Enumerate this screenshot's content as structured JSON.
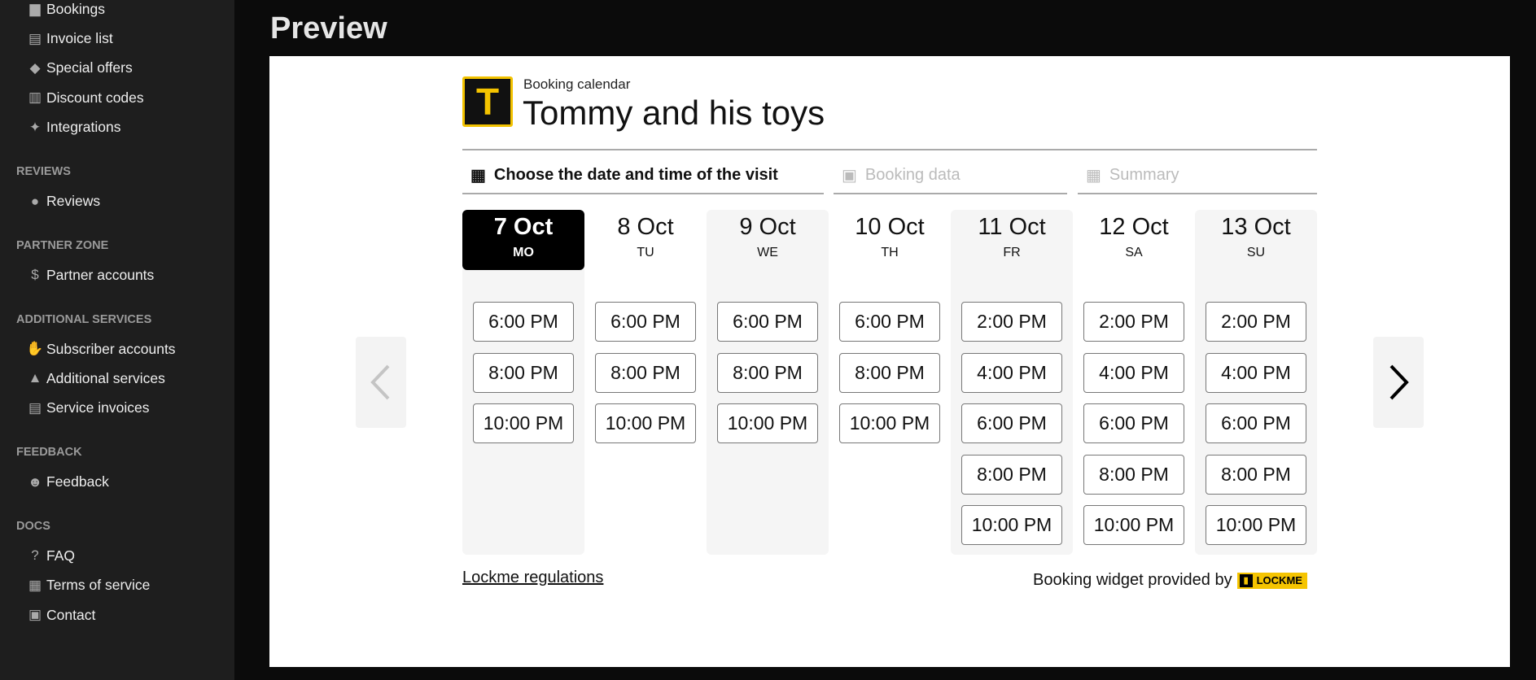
{
  "sidebar": {
    "sections": [
      {
        "header": "",
        "items": [
          {
            "label": "Bookings",
            "icon": "book-icon"
          },
          {
            "label": "Invoice list",
            "icon": "file-invoice-icon"
          },
          {
            "label": "Special offers",
            "icon": "tags-icon"
          },
          {
            "label": "Discount codes",
            "icon": "barcode-icon"
          },
          {
            "label": "Integrations",
            "icon": "icons-icon"
          }
        ]
      },
      {
        "header": "REVIEWS",
        "items": [
          {
            "label": "Reviews",
            "icon": "comment-icon"
          }
        ]
      },
      {
        "header": "PARTNER ZONE",
        "items": [
          {
            "label": "Partner accounts",
            "icon": "dollar-icon"
          }
        ]
      },
      {
        "header": "ADDITIONAL SERVICES",
        "items": [
          {
            "label": "Subscriber accounts",
            "icon": "handshake-icon"
          },
          {
            "label": "Additional services",
            "icon": "concierge-bell-icon"
          },
          {
            "label": "Service invoices",
            "icon": "file-invoice-icon"
          }
        ]
      },
      {
        "header": "FEEDBACK",
        "items": [
          {
            "label": "Feedback",
            "icon": "comment-smile-icon"
          }
        ]
      },
      {
        "header": "DOCS",
        "items": [
          {
            "label": "FAQ",
            "icon": "question-icon"
          },
          {
            "label": "Terms of service",
            "icon": "book-open-icon"
          },
          {
            "label": "Contact",
            "icon": "id-card-icon"
          }
        ]
      }
    ]
  },
  "page": {
    "title": "Preview"
  },
  "widget": {
    "logo_letter": "T",
    "label": "Booking calendar",
    "title": "Tommy and his toys",
    "tabs": [
      {
        "label": "Choose the date and time of the visit",
        "icon": "calendar-icon",
        "active": true
      },
      {
        "label": "Booking data",
        "icon": "id-card-icon",
        "active": false
      },
      {
        "label": "Summary",
        "icon": "calendar-check-icon",
        "active": false
      }
    ],
    "days": [
      {
        "date": "7 Oct",
        "weekday": "MO",
        "selected": true,
        "slots": [
          "6:00 PM",
          "8:00 PM",
          "10:00 PM"
        ]
      },
      {
        "date": "8 Oct",
        "weekday": "TU",
        "selected": false,
        "slots": [
          "6:00 PM",
          "8:00 PM",
          "10:00 PM"
        ]
      },
      {
        "date": "9 Oct",
        "weekday": "WE",
        "selected": false,
        "slots": [
          "6:00 PM",
          "8:00 PM",
          "10:00 PM"
        ]
      },
      {
        "date": "10 Oct",
        "weekday": "TH",
        "selected": false,
        "slots": [
          "6:00 PM",
          "8:00 PM",
          "10:00 PM"
        ]
      },
      {
        "date": "11 Oct",
        "weekday": "FR",
        "selected": false,
        "slots": [
          "2:00 PM",
          "4:00 PM",
          "6:00 PM",
          "8:00 PM",
          "10:00 PM"
        ]
      },
      {
        "date": "12 Oct",
        "weekday": "SA",
        "selected": false,
        "slots": [
          "2:00 PM",
          "4:00 PM",
          "6:00 PM",
          "8:00 PM",
          "10:00 PM"
        ]
      },
      {
        "date": "13 Oct",
        "weekday": "SU",
        "selected": false,
        "slots": [
          "2:00 PM",
          "4:00 PM",
          "6:00 PM",
          "8:00 PM",
          "10:00 PM"
        ]
      }
    ],
    "regulations_link": "Lockme regulations",
    "provided_by": "Booking widget provided by",
    "brand": "LOCKME",
    "colors": {
      "brand_yellow": "#f5c400",
      "selected": "#000000",
      "inactive_tab": "#bbbbbb"
    }
  }
}
